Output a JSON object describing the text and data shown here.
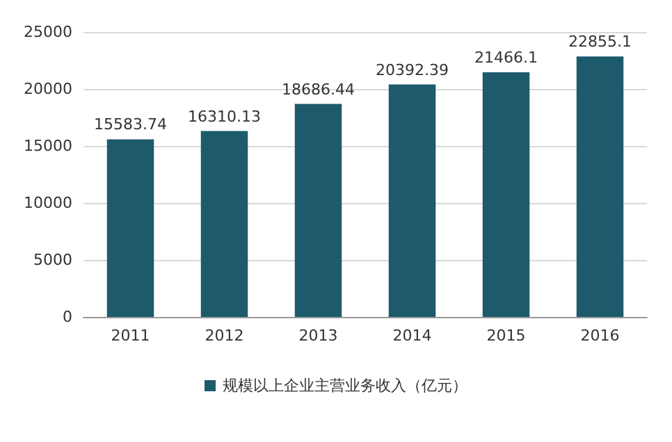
{
  "chart_data": {
    "type": "bar",
    "categories": [
      "2011",
      "2012",
      "2013",
      "2014",
      "2015",
      "2016"
    ],
    "series": [
      {
        "name": "规模以上企业主营业务收入（亿元）",
        "color": "#1d5a6c",
        "values": [
          15583.74,
          16310.13,
          18686.44,
          20392.39,
          21466.1,
          22855.1
        ]
      }
    ],
    "ylim": [
      0,
      25000
    ],
    "yticks": [
      0,
      5000,
      10000,
      15000,
      20000,
      25000
    ],
    "grid": "y",
    "legend": "bottom",
    "data_labels": true
  }
}
